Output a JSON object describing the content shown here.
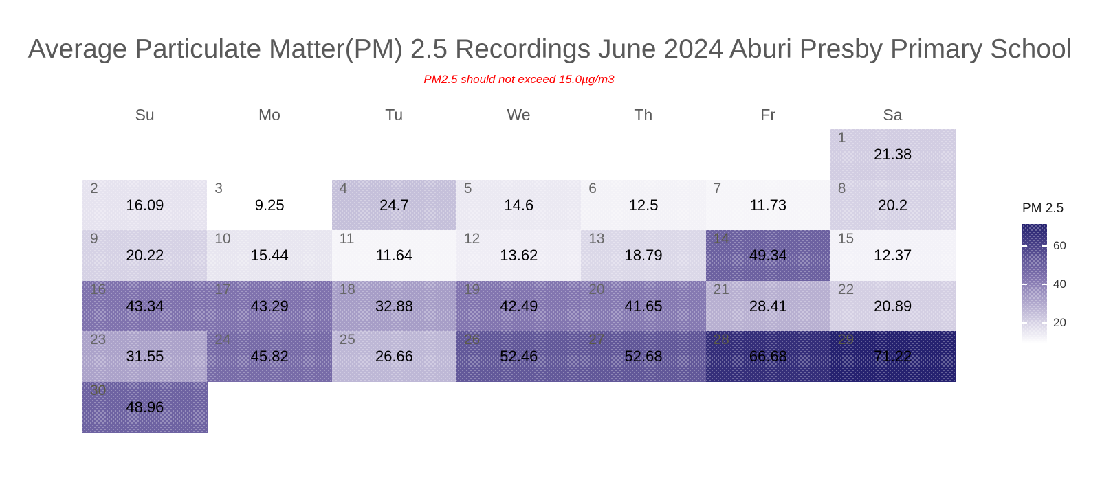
{
  "chart_data": {
    "type": "heatmap",
    "title": "Average Particulate Matter(PM) 2.5 Recordings June 2024 Aburi Presby Primary School",
    "subtitle": "PM2.5 should not exceed 15.0µg/m3",
    "columns": [
      "Su",
      "Mo",
      "Tu",
      "We",
      "Th",
      "Fr",
      "Sa"
    ],
    "legend": {
      "title": "PM 2.5",
      "ticks": [
        60,
        40,
        20
      ]
    },
    "color_scale": {
      "min": 9.25,
      "max": 71.22,
      "anchors": [
        {
          "value": 9.25,
          "color": "#ffffff"
        },
        {
          "value": 43.34,
          "color": "#8073ae"
        },
        {
          "value": 71.22,
          "color": "#262270"
        }
      ]
    },
    "days": [
      {
        "day": 1,
        "value": 21.38
      },
      {
        "day": 2,
        "value": 16.09
      },
      {
        "day": 3,
        "value": 9.25
      },
      {
        "day": 4,
        "value": 24.7
      },
      {
        "day": 5,
        "value": 14.6
      },
      {
        "day": 6,
        "value": 12.5
      },
      {
        "day": 7,
        "value": 11.73
      },
      {
        "day": 8,
        "value": 20.2
      },
      {
        "day": 9,
        "value": 20.22
      },
      {
        "day": 10,
        "value": 15.44
      },
      {
        "day": 11,
        "value": 11.64
      },
      {
        "day": 12,
        "value": 13.62
      },
      {
        "day": 13,
        "value": 18.79
      },
      {
        "day": 14,
        "value": 49.34
      },
      {
        "day": 15,
        "value": 12.37
      },
      {
        "day": 16,
        "value": 43.34
      },
      {
        "day": 17,
        "value": 43.29
      },
      {
        "day": 18,
        "value": 32.88
      },
      {
        "day": 19,
        "value": 42.49
      },
      {
        "day": 20,
        "value": 41.65
      },
      {
        "day": 21,
        "value": 28.41
      },
      {
        "day": 22,
        "value": 20.89
      },
      {
        "day": 23,
        "value": 31.55
      },
      {
        "day": 24,
        "value": 45.82
      },
      {
        "day": 25,
        "value": 26.66
      },
      {
        "day": 26,
        "value": 52.46
      },
      {
        "day": 27,
        "value": 52.68
      },
      {
        "day": 28,
        "value": 66.68
      },
      {
        "day": 29,
        "value": 71.22
      },
      {
        "day": 30,
        "value": 48.96
      }
    ]
  }
}
